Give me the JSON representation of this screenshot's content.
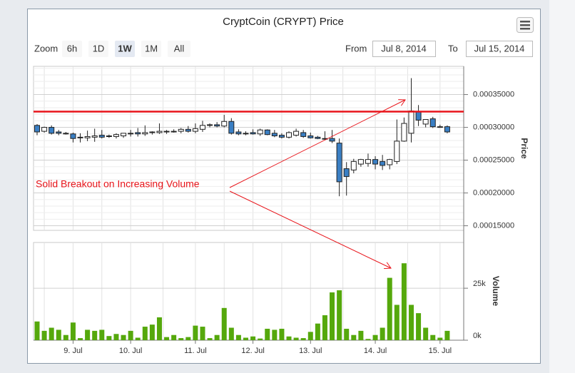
{
  "chart_data": {
    "type": "candlestick",
    "title": "CryptCoin (CRYPT) Price",
    "zoom": {
      "label": "Zoom",
      "buttons": [
        "6h",
        "1D",
        "1W",
        "1M",
        "All"
      ],
      "selected": "1W"
    },
    "range": {
      "from_label": "From",
      "from": "Jul 8, 2014",
      "to_label": "To",
      "to": "Jul 15, 2014"
    },
    "y_label": "Price",
    "y2_label": "Volume",
    "categories": [
      null,
      null,
      null,
      null,
      null,
      "9. Jul",
      null,
      null,
      null,
      null,
      null,
      null,
      null,
      "10. Jul",
      null,
      null,
      null,
      null,
      null,
      null,
      null,
      null,
      "11. Jul",
      null,
      null,
      null,
      null,
      null,
      null,
      null,
      "12. Jul",
      null,
      null,
      null,
      null,
      null,
      null,
      null,
      "13. Jul",
      null,
      null,
      null,
      null,
      null,
      null,
      null,
      null,
      "14. Jul",
      null,
      null,
      null,
      null,
      null,
      null,
      null,
      null,
      "15. Jul",
      null,
      null
    ],
    "ohlc": {
      "up_color": "#ffffff",
      "down_color": "#3a7fc4",
      "open": [
        0.000303,
        0.000294,
        0.0003,
        0.000293,
        0.000291,
        0.00029,
        0.000284,
        0.000284,
        0.000285,
        0.000288,
        0.000287,
        0.000286,
        0.000287,
        0.00029,
        0.000292,
        0.00029,
        0.000292,
        0.000292,
        0.000293,
        0.000294,
        0.000294,
        0.000297,
        0.000294,
        0.000297,
        0.000303,
        0.000304,
        0.000302,
        0.000309,
        0.000293,
        0.000291,
        0.000292,
        0.00029,
        0.000296,
        0.000291,
        0.000288,
        0.000285,
        0.000288,
        0.000292,
        0.000287,
        0.000285,
        0.000283,
        0.000283,
        0.000276,
        0.000237,
        0.000235,
        0.000244,
        0.000245,
        0.000251,
        0.000248,
        0.000243,
        0.000248,
        0.000279,
        0.000291,
        0.000324,
        0.000305,
        0.000313,
        0.000301,
        0.000301
      ],
      "high": [
        0.000305,
        0.000301,
        0.000303,
        0.000296,
        0.000293,
        0.000292,
        0.000291,
        0.000295,
        0.000298,
        0.000296,
        0.000289,
        0.000291,
        0.00029,
        0.000296,
        0.000299,
        0.000303,
        0.000294,
        0.000306,
        0.000296,
        0.000297,
        0.000299,
        0.000302,
        0.000306,
        0.00031,
        0.000306,
        0.000308,
        0.000319,
        0.000314,
        0.000297,
        0.000294,
        0.000297,
        0.000298,
        0.000297,
        0.000296,
        0.000291,
        0.000294,
        0.000298,
        0.000296,
        0.000292,
        0.000287,
        0.000294,
        0.000296,
        0.000283,
        0.000247,
        0.000252,
        0.000252,
        0.00026,
        0.000256,
        0.000258,
        0.000252,
        0.000312,
        0.000315,
        0.000375,
        0.000334,
        0.000312,
        0.000316,
        0.000304,
        0.000303
      ],
      "low": [
        0.000288,
        0.000292,
        0.000289,
        0.000288,
        0.000289,
        0.000277,
        0.000277,
        0.000279,
        0.000278,
        0.000283,
        0.000284,
        0.000283,
        0.000284,
        0.000286,
        0.000286,
        0.000287,
        0.000289,
        0.00029,
        0.00029,
        0.000292,
        0.000291,
        0.000292,
        0.000291,
        0.000293,
        0.0003,
        0.0003,
        0.0003,
        0.000289,
        0.000288,
        0.000288,
        0.000289,
        0.000287,
        0.000288,
        0.000285,
        0.000283,
        0.000283,
        0.000286,
        0.000284,
        0.000283,
        0.000282,
        0.000281,
        0.000276,
        0.000195,
        0.000196,
        0.00023,
        0.00024,
        0.00024,
        0.000236,
        0.000235,
        0.000236,
        0.000244,
        0.000278,
        0.000277,
        0.000302,
        0.0003,
        0.000299,
        0.0003,
        0.000291
      ],
      "close": [
        0.000293,
        0.0003,
        0.000291,
        0.000291,
        0.00029,
        0.000283,
        0.000285,
        0.000286,
        0.000287,
        0.000285,
        0.000287,
        0.000289,
        0.000291,
        0.000291,
        0.00029,
        0.000292,
        0.000293,
        0.000294,
        0.000294,
        0.000294,
        0.000297,
        0.000294,
        0.000298,
        0.000303,
        0.000304,
        0.000302,
        0.000309,
        0.000291,
        0.00029,
        0.000291,
        0.00029,
        0.000296,
        0.000289,
        0.000287,
        0.000285,
        0.000292,
        0.000294,
        0.000286,
        0.000284,
        0.000283,
        0.000282,
        0.000279,
        0.000217,
        0.000225,
        0.000248,
        0.000251,
        0.000251,
        0.000244,
        0.000242,
        0.000251,
        0.000279,
        0.000306,
        0.000325,
        0.000311,
        0.000312,
        0.000301,
        0.000301,
        0.000293
      ]
    },
    "volume": {
      "axis": "y2",
      "color": "#55a80c",
      "values": [
        9000,
        4500,
        6000,
        5000,
        2500,
        8500,
        1000,
        5000,
        4500,
        5000,
        2000,
        3000,
        2500,
        4500,
        1200,
        6500,
        7500,
        11000,
        1500,
        2500,
        1000,
        1500,
        7000,
        6500,
        1000,
        2500,
        15500,
        6000,
        2500,
        1200,
        1800,
        800,
        5500,
        5000,
        5500,
        1800,
        1200,
        1000,
        4000,
        8000,
        12000,
        23000,
        24000,
        5500,
        2500,
        4500,
        600,
        2500,
        6000,
        30000,
        17000,
        37000,
        17000,
        13000,
        6000,
        2500,
        1200,
        4500
      ]
    },
    "ylim": [
      0.000143,
      0.000393
    ],
    "yticks": [
      {
        "value": 0.00015,
        "label": "0.00015000"
      },
      {
        "value": 0.0002,
        "label": "0.00020000"
      },
      {
        "value": 0.00025,
        "label": "0.00025000"
      },
      {
        "value": 0.0003,
        "label": "0.00030000"
      },
      {
        "value": 0.00035,
        "label": "0.00035000"
      }
    ],
    "y2lim": [
      0,
      47000
    ],
    "y2ticks": [
      {
        "value": 0,
        "label": "0k"
      },
      {
        "value": 25000,
        "label": "25k"
      }
    ],
    "grid": true,
    "resistance_line": {
      "value": 0.000324,
      "color": "#e8141a"
    },
    "annotation": {
      "text": "Solid Breakout on Increasing Volume",
      "color": "#e8141a"
    }
  }
}
